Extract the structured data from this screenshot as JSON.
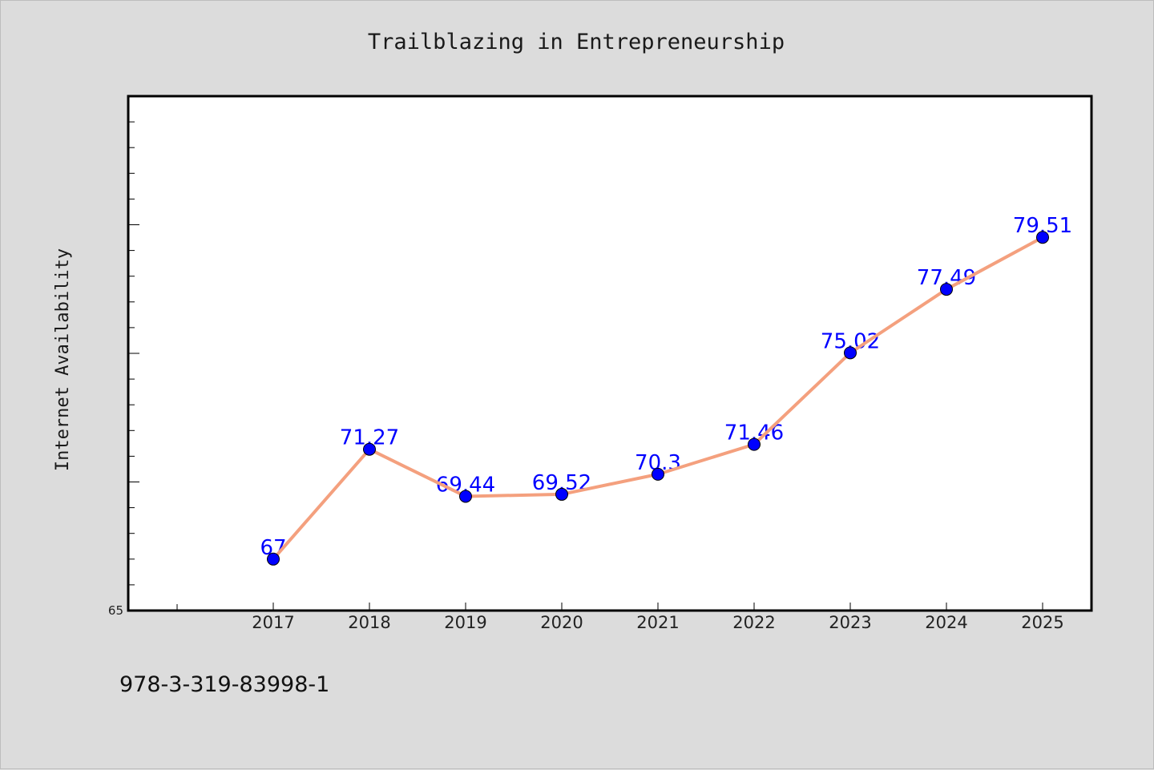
{
  "chart_data": {
    "type": "line",
    "title": "Trailblazing in Entrepreneurship",
    "xlabel": "",
    "ylabel": "Internet Availability",
    "categories": [
      "2017",
      "2018",
      "2019",
      "2020",
      "2021",
      "2022",
      "2023",
      "2024",
      "2025"
    ],
    "series": [
      {
        "values": [
          67,
          71.27,
          69.44,
          69.52,
          70.3,
          71.46,
          75.02,
          77.49,
          79.51
        ],
        "labels": [
          "67",
          "71.27",
          "69.44",
          "69.52",
          "70.3",
          "71.46",
          "75.02",
          "77.49",
          "79.51"
        ],
        "line_color": "#f4a07e",
        "marker_color": "#0000ff"
      }
    ],
    "ylim": [
      65,
      85
    ],
    "y_tick_labels": [
      "65"
    ],
    "grid": false,
    "legend": "none"
  },
  "footer": {
    "isbn": "978-3-319-83998-1"
  },
  "colors": {
    "background": "#dcdcdc",
    "plot_background": "#ffffff",
    "axis": "#000000"
  }
}
